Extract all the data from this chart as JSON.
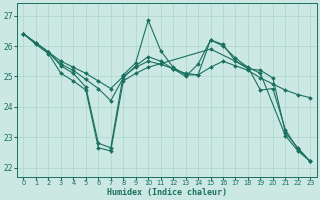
{
  "xlabel": "Humidex (Indice chaleur)",
  "bg_color": "#cce8e2",
  "grid_color": "#aad4cc",
  "line_color": "#1a7060",
  "xlim": [
    -0.5,
    23.5
  ],
  "ylim": [
    21.7,
    27.4
  ],
  "xticks": [
    0,
    1,
    2,
    3,
    4,
    5,
    6,
    7,
    8,
    9,
    10,
    11,
    12,
    13,
    14,
    15,
    16,
    17,
    18,
    19,
    20,
    21,
    22,
    23
  ],
  "yticks": [
    22,
    23,
    24,
    25,
    26,
    27
  ],
  "line1_x": [
    0,
    1,
    2,
    3,
    4,
    5,
    6,
    7,
    8,
    9,
    10,
    11,
    12,
    13,
    14,
    15,
    16,
    17,
    18,
    19,
    20,
    21,
    22,
    23
  ],
  "line1_y": [
    26.4,
    26.1,
    25.8,
    25.35,
    25.1,
    24.65,
    22.8,
    22.65,
    25.05,
    25.45,
    26.85,
    25.85,
    25.3,
    25.05,
    25.05,
    26.2,
    26.05,
    25.5,
    25.25,
    25.2,
    24.95,
    23.15,
    22.65,
    22.2
  ],
  "line2_x": [
    0,
    1,
    2,
    3,
    4,
    5,
    6,
    7,
    8,
    9,
    10,
    11,
    12,
    13,
    14,
    15,
    16,
    17,
    18,
    19,
    20,
    21,
    22,
    23
  ],
  "line2_y": [
    26.4,
    26.1,
    25.8,
    25.5,
    25.3,
    25.1,
    24.85,
    24.6,
    25.0,
    25.3,
    25.5,
    25.4,
    25.25,
    25.1,
    25.05,
    25.3,
    25.5,
    25.35,
    25.2,
    24.95,
    24.75,
    24.55,
    24.4,
    24.3
  ],
  "line3_x": [
    0,
    1,
    2,
    3,
    4,
    5,
    6,
    7,
    8,
    9,
    10,
    11,
    12,
    13,
    14,
    15,
    16,
    17,
    18,
    19,
    20,
    21,
    22,
    23
  ],
  "line3_y": [
    26.4,
    26.1,
    25.8,
    25.4,
    25.2,
    24.9,
    24.6,
    24.2,
    24.95,
    25.35,
    25.65,
    25.5,
    25.25,
    25.0,
    25.4,
    26.2,
    26.0,
    25.6,
    25.3,
    24.55,
    24.6,
    23.25,
    22.6,
    22.2
  ],
  "line4_x": [
    0,
    1,
    2,
    3,
    4,
    5,
    6,
    7,
    8,
    9,
    10,
    15,
    19,
    21,
    22,
    23
  ],
  "line4_y": [
    26.4,
    26.05,
    25.75,
    25.1,
    24.85,
    24.55,
    22.65,
    22.55,
    24.85,
    25.1,
    25.3,
    25.9,
    25.1,
    23.05,
    22.55,
    22.2
  ]
}
